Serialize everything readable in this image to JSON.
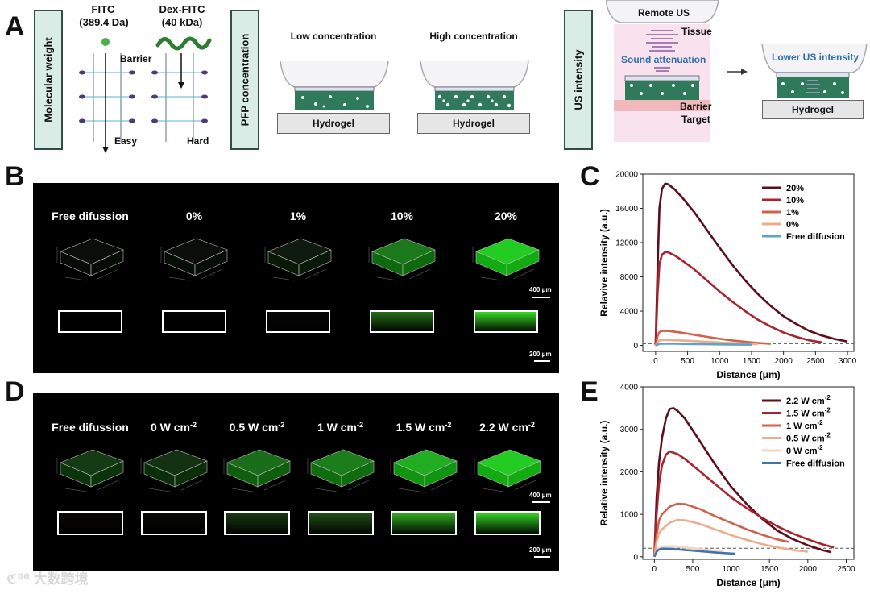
{
  "panels": {
    "a": "A",
    "b": "B",
    "c": "C",
    "d": "D",
    "e": "E"
  },
  "panel_a": {
    "molecular_weight_label": "Molecular weight",
    "fitc_name": "FITC",
    "fitc_mass": "(389.4 Da)",
    "dex_name": "Dex-FITC",
    "dex_mass": "(40 kDa)",
    "barrier": "Barrier",
    "easy": "Easy",
    "hard": "Hard",
    "pfp_label": "PFP concentration",
    "low_conc": "Low concentration",
    "high_conc": "High concentration",
    "hydrogel": "Hydrogel",
    "us_label": "US intensity",
    "remote_us": "Remote US",
    "tissue": "Tissue",
    "sound_attenuation": "Sound attenuation",
    "barrier_right": "Barrier",
    "target": "Target",
    "lower_us": "Lower US intensity",
    "colors": {
      "label_bg": "#d9ede6",
      "gel": "#2e7a5a",
      "fitc": "#4cae4c",
      "dex": "#2e7d32",
      "tissue": "#f3d5e6"
    }
  },
  "panel_b": {
    "titles": [
      "Free  difussion",
      "0%",
      "1%",
      "10%",
      "20%"
    ],
    "intensity": [
      0.04,
      0.05,
      0.18,
      0.7,
      1.0
    ],
    "slab": [
      0.0,
      0.02,
      0.08,
      0.65,
      0.95
    ],
    "scale_top": "400 μm",
    "scale_bottom": "200 μm"
  },
  "panel_d": {
    "titles": [
      {
        "main": "Free  difussion",
        "sup": ""
      },
      {
        "main": "0 W cm",
        "sup": "-2"
      },
      {
        "main": "0.5 W cm",
        "sup": "-2"
      },
      {
        "main": "1 W cm",
        "sup": "-2"
      },
      {
        "main": "1.5 W cm",
        "sup": "-2"
      },
      {
        "main": "2.2 W cm",
        "sup": "-2"
      }
    ],
    "intensity": [
      0.4,
      0.35,
      0.65,
      0.72,
      0.9,
      1.0
    ],
    "slab": [
      0.1,
      0.12,
      0.45,
      0.55,
      0.85,
      0.95
    ],
    "scale_top": "400 μm",
    "scale_bottom": "200 μm"
  },
  "chart_data": [
    {
      "id": "C",
      "type": "line",
      "xlabel": "Distance (μm)",
      "ylabel": "Relavive intensity (a.u.)",
      "xlim": [
        -200,
        3100
      ],
      "ylim": [
        -700,
        20000
      ],
      "xticks": [
        0,
        500,
        1000,
        1500,
        2000,
        2500,
        3000
      ],
      "yticks": [
        0,
        4000,
        8000,
        12000,
        16000,
        20000
      ],
      "legend_position": "top-right",
      "threshold": 200,
      "series": [
        {
          "name": "20%",
          "color": "#5c0f1a",
          "x": [
            0,
            30,
            60,
            100,
            150,
            200,
            300,
            400,
            600,
            800,
            1000,
            1200,
            1400,
            1600,
            1800,
            2000,
            2200,
            2400,
            2600,
            2800,
            3000
          ],
          "y": [
            0,
            9000,
            16000,
            18300,
            18900,
            18800,
            18200,
            17400,
            15600,
            13500,
            11400,
            9400,
            7600,
            6000,
            4600,
            3400,
            2500,
            1700,
            1150,
            750,
            450
          ]
        },
        {
          "name": "10%",
          "color": "#a8242f",
          "x": [
            0,
            30,
            60,
            100,
            150,
            200,
            300,
            400,
            600,
            800,
            1000,
            1200,
            1400,
            1600,
            1800,
            2000,
            2200,
            2400,
            2600
          ],
          "y": [
            0,
            6000,
            9500,
            10600,
            10900,
            10850,
            10500,
            10000,
            8900,
            7600,
            6300,
            5100,
            4000,
            3000,
            2200,
            1500,
            1000,
            600,
            350
          ]
        },
        {
          "name": "1%",
          "color": "#d1604c",
          "x": [
            0,
            30,
            60,
            100,
            200,
            400,
            600,
            800,
            1000,
            1200,
            1400,
            1600,
            1800
          ],
          "y": [
            0,
            1100,
            1550,
            1700,
            1680,
            1500,
            1250,
            1000,
            780,
            580,
            420,
            290,
            180
          ]
        },
        {
          "name": "0%",
          "color": "#efab8c",
          "x": [
            0,
            50,
            100,
            200,
            400,
            600,
            800,
            1000,
            1200,
            1400,
            1600
          ],
          "y": [
            0,
            550,
            650,
            640,
            580,
            500,
            420,
            340,
            270,
            200,
            150
          ]
        },
        {
          "name": "Free diffusion",
          "color": "#5ba3c9",
          "x": [
            0,
            50,
            100,
            300,
            500,
            700,
            900,
            1100,
            1300,
            1500
          ],
          "y": [
            0,
            150,
            200,
            190,
            170,
            150,
            130,
            110,
            95,
            80
          ]
        }
      ]
    },
    {
      "id": "E",
      "type": "line",
      "xlabel": "Distance (μm)",
      "ylabel": "Relative intensity (a.u.)",
      "xlim": [
        -150,
        2600
      ],
      "ylim": [
        -60,
        4000
      ],
      "xticks": [
        0,
        500,
        1000,
        1500,
        2000,
        2500
      ],
      "yticks": [
        0,
        1000,
        2000,
        3000,
        4000
      ],
      "legend_position": "top-right",
      "threshold": 200,
      "series": [
        {
          "name": "2.2 W cm-2",
          "color": "#5c0f1a",
          "x": [
            0,
            30,
            60,
            100,
            150,
            200,
            250,
            300,
            400,
            600,
            800,
            1000,
            1200,
            1400,
            1600,
            1800,
            2000,
            2200,
            2300
          ],
          "y": [
            0,
            1400,
            2200,
            2800,
            3250,
            3480,
            3500,
            3440,
            3250,
            2700,
            2150,
            1650,
            1250,
            900,
            620,
            420,
            270,
            150,
            110
          ]
        },
        {
          "name": "1.5 W cm-2",
          "color": "#a8242f",
          "x": [
            0,
            30,
            60,
            100,
            150,
            200,
            300,
            400,
            600,
            800,
            1000,
            1200,
            1400,
            1600,
            1800,
            2000,
            2200,
            2340
          ],
          "y": [
            0,
            1000,
            1700,
            2150,
            2400,
            2480,
            2420,
            2300,
            2000,
            1700,
            1400,
            1150,
            920,
            720,
            550,
            410,
            290,
            220
          ]
        },
        {
          "name": "1 W cm-2",
          "color": "#d1604c",
          "x": [
            0,
            30,
            60,
            100,
            200,
            300,
            400,
            600,
            800,
            1000,
            1200,
            1400,
            1600,
            1750
          ],
          "y": [
            0,
            500,
            850,
            1000,
            1180,
            1250,
            1240,
            1120,
            950,
            800,
            650,
            520,
            410,
            350
          ]
        },
        {
          "name": "0.5  W cm-2",
          "color": "#efab8c",
          "x": [
            0,
            30,
            60,
            100,
            200,
            300,
            400,
            600,
            800,
            1000,
            1200,
            1400,
            1600,
            1800,
            2000
          ],
          "y": [
            0,
            350,
            550,
            650,
            800,
            870,
            860,
            770,
            640,
            510,
            400,
            300,
            220,
            160,
            120
          ]
        },
        {
          "name": "0 W cm-2",
          "color": "#f6d3c2",
          "x": [
            0,
            50,
            100,
            200,
            300,
            500,
            700,
            900
          ],
          "y": [
            0,
            180,
            240,
            250,
            240,
            200,
            160,
            120
          ]
        },
        {
          "name": "Free diffusion",
          "color": "#3c74b0",
          "x": [
            0,
            30,
            60,
            100,
            200,
            400,
            600,
            800,
            1050
          ],
          "y": [
            0,
            120,
            170,
            190,
            190,
            160,
            130,
            100,
            70
          ]
        }
      ]
    }
  ]
}
